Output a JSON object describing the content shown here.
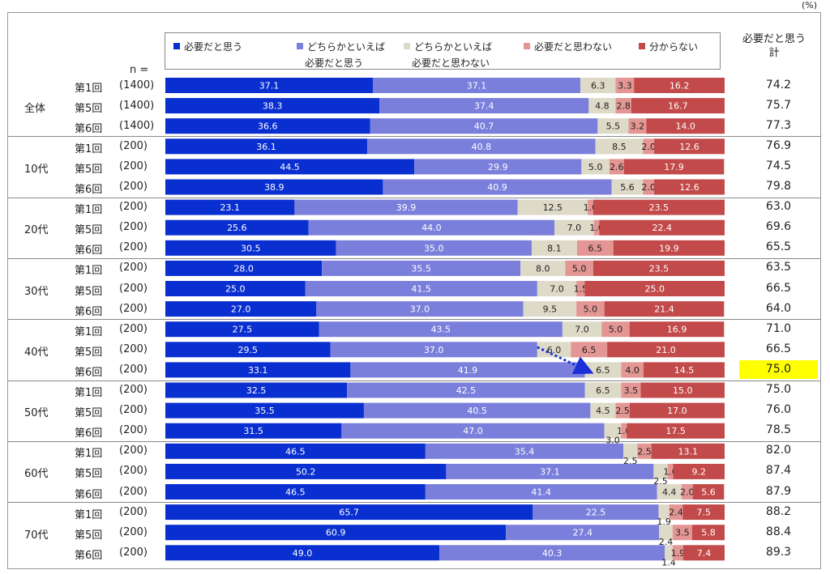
{
  "unit_label": "(%)",
  "n_label": "n =",
  "total_header": [
    "必要だと思う",
    "計"
  ],
  "legend": [
    {
      "line1": "必要だと思う",
      "line2": "",
      "color": "#0a2fd0"
    },
    {
      "line1": "どちらかといえば",
      "line2": "必要だと思う",
      "color": "#7b7fdc"
    },
    {
      "line1": "どちらかといえば",
      "line2": "必要だと思わない",
      "color": "#dedac8"
    },
    {
      "line1": "必要だと思わない",
      "line2": "",
      "color": "#e39693"
    },
    {
      "line1": "分からない",
      "line2": "",
      "color": "#c24a4a"
    }
  ],
  "groups": [
    "全体",
    "10代",
    "20代",
    "30代",
    "40代",
    "50代",
    "60代",
    "70代"
  ],
  "highlight_color": "#ffff00",
  "chart_data": {
    "type": "bar",
    "orientation": "horizontal",
    "stacked": true,
    "xlim": [
      0,
      100
    ],
    "series_names": [
      "必要だと思う",
      "どちらかといえば必要だと思う",
      "どちらかといえば必要だと思わない",
      "必要だと思わない",
      "分からない"
    ],
    "rows": [
      {
        "group": "全体",
        "round": "第1回",
        "n": "(1400)",
        "values": [
          37.1,
          37.1,
          6.3,
          3.3,
          16.2
        ],
        "total": "74.2"
      },
      {
        "group": "全体",
        "round": "第5回",
        "n": "(1400)",
        "values": [
          38.3,
          37.4,
          4.8,
          2.8,
          16.7
        ],
        "total": "75.7"
      },
      {
        "group": "全体",
        "round": "第6回",
        "n": "(1400)",
        "values": [
          36.6,
          40.7,
          5.5,
          3.2,
          14.0
        ],
        "total": "77.3"
      },
      {
        "group": "10代",
        "round": "第1回",
        "n": "(200)",
        "values": [
          36.1,
          40.8,
          8.5,
          2.0,
          12.6
        ],
        "total": "76.9"
      },
      {
        "group": "10代",
        "round": "第5回",
        "n": "(200)",
        "values": [
          44.5,
          29.9,
          5.0,
          2.6,
          17.9
        ],
        "total": "74.5"
      },
      {
        "group": "10代",
        "round": "第6回",
        "n": "(200)",
        "values": [
          38.9,
          40.9,
          5.6,
          2.0,
          12.6
        ],
        "total": "79.8"
      },
      {
        "group": "20代",
        "round": "第1回",
        "n": "(200)",
        "values": [
          23.1,
          39.9,
          12.5,
          1.0,
          23.5
        ],
        "total": "63.0"
      },
      {
        "group": "20代",
        "round": "第5回",
        "n": "(200)",
        "values": [
          25.6,
          44.0,
          7.0,
          1.0,
          22.4
        ],
        "total": "69.6"
      },
      {
        "group": "20代",
        "round": "第6回",
        "n": "(200)",
        "values": [
          30.5,
          35.0,
          8.1,
          6.5,
          19.9
        ],
        "total": "65.5"
      },
      {
        "group": "30代",
        "round": "第1回",
        "n": "(200)",
        "values": [
          28.0,
          35.5,
          8.0,
          5.0,
          23.5
        ],
        "total": "63.5"
      },
      {
        "group": "30代",
        "round": "第5回",
        "n": "(200)",
        "values": [
          25.0,
          41.5,
          7.0,
          1.5,
          25.0
        ],
        "total": "66.5"
      },
      {
        "group": "30代",
        "round": "第6回",
        "n": "(200)",
        "values": [
          27.0,
          37.0,
          9.5,
          5.0,
          21.4
        ],
        "total": "64.0"
      },
      {
        "group": "40代",
        "round": "第1回",
        "n": "(200)",
        "values": [
          27.5,
          43.5,
          7.0,
          5.0,
          16.9
        ],
        "total": "71.0"
      },
      {
        "group": "40代",
        "round": "第5回",
        "n": "(200)",
        "values": [
          29.5,
          37.0,
          6.0,
          6.5,
          21.0
        ],
        "total": "66.5"
      },
      {
        "group": "40代",
        "round": "第6回",
        "n": "(200)",
        "values": [
          33.1,
          41.9,
          6.5,
          4.0,
          14.5
        ],
        "total": "75.0",
        "highlight": true
      },
      {
        "group": "50代",
        "round": "第1回",
        "n": "(200)",
        "values": [
          32.5,
          42.5,
          6.5,
          3.5,
          15.0
        ],
        "total": "75.0"
      },
      {
        "group": "50代",
        "round": "第5回",
        "n": "(200)",
        "values": [
          35.5,
          40.5,
          4.5,
          2.5,
          17.0
        ],
        "total": "76.0"
      },
      {
        "group": "50代",
        "round": "第6回",
        "n": "(200)",
        "values": [
          31.5,
          47.0,
          3.0,
          1.0,
          17.5
        ],
        "total": "78.5"
      },
      {
        "group": "60代",
        "round": "第1回",
        "n": "(200)",
        "values": [
          46.5,
          35.4,
          2.5,
          2.5,
          13.1
        ],
        "total": "82.0"
      },
      {
        "group": "60代",
        "round": "第5回",
        "n": "(200)",
        "values": [
          50.2,
          37.1,
          2.5,
          1.0,
          9.2
        ],
        "total": "87.4"
      },
      {
        "group": "60代",
        "round": "第6回",
        "n": "(200)",
        "values": [
          46.5,
          41.4,
          4.4,
          2.0,
          5.6
        ],
        "total": "87.9"
      },
      {
        "group": "70代",
        "round": "第1回",
        "n": "(200)",
        "values": [
          65.7,
          22.5,
          1.9,
          2.4,
          7.5
        ],
        "total": "88.2"
      },
      {
        "group": "70代",
        "round": "第5回",
        "n": "(200)",
        "values": [
          60.9,
          27.4,
          2.4,
          3.5,
          5.8
        ],
        "total": "88.4"
      },
      {
        "group": "70代",
        "round": "第6回",
        "n": "(200)",
        "values": [
          49.0,
          40.3,
          1.4,
          1.9,
          7.4
        ],
        "total": "89.3"
      }
    ],
    "annotation": "dotted arrow pointing to 40代 第6回 row",
    "grid": false
  }
}
